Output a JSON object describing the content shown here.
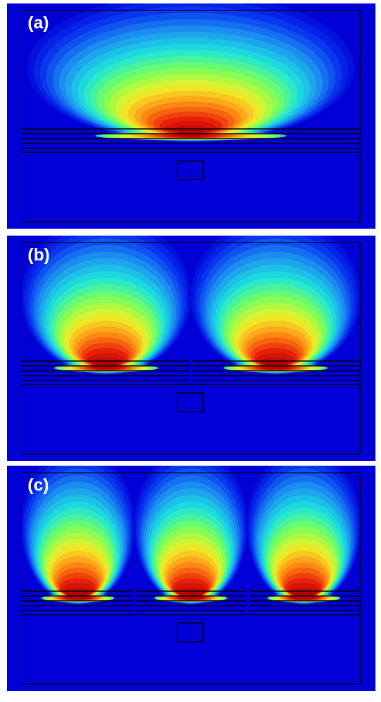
{
  "colors": {
    "background": "#0000d6",
    "outline": "#000000",
    "label": "#ffffff",
    "field_scale": [
      "#0000d6",
      "#0a3cf0",
      "#1e96f0",
      "#1ee6dc",
      "#78ff5a",
      "#f0f028",
      "#ff8c14",
      "#e61e0a",
      "#b40000"
    ]
  },
  "panels": [
    {
      "label": "(a)",
      "lobes": 1
    },
    {
      "label": "(b)",
      "lobes": 2
    },
    {
      "label": "(c)",
      "lobes": 3
    }
  ]
}
